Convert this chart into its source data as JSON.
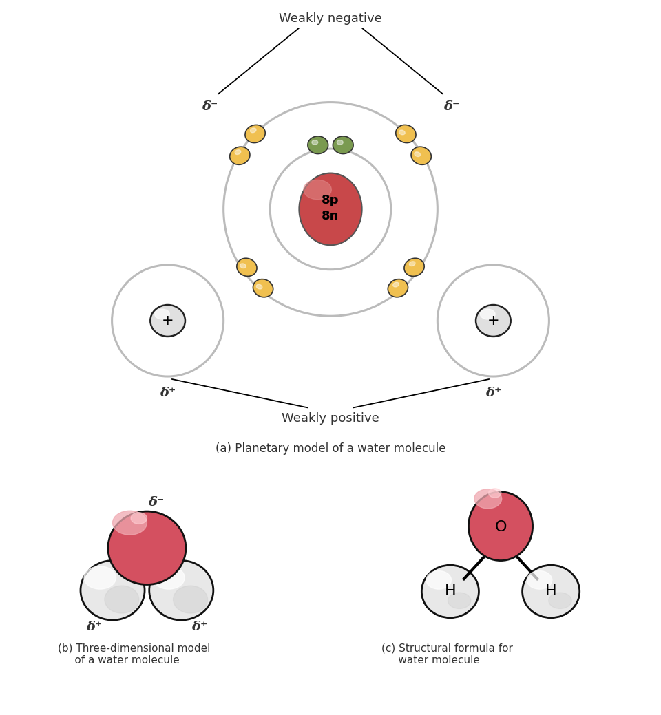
{
  "bg_color": "#ffffff",
  "oxygen_nucleus_color": "#c8484a",
  "hydrogen_nucleus_color": "#e0e0e0",
  "hydrogen_nucleus_edge": "#222222",
  "electron_color_yellow": "#f0c050",
  "electron_color_green": "#7a9a50",
  "electron_edge": "#333333",
  "orbit_color": "#bbbbbb",
  "orbit_lw": 2.2,
  "label_color": "#333333",
  "red_sphere_color": "#d45060",
  "white_sphere_color": "#e8e8e8",
  "white_sphere_edge": "#111111",
  "title_a": "(a) Planetary model of a water molecule",
  "weakly_negative": "Weakly negative",
  "weakly_positive": "Weakly positive",
  "delta_minus": "δ⁻",
  "delta_plus": "δ⁺",
  "nucleus_label": "8p\n8n",
  "label_O": "O",
  "label_H": "H"
}
